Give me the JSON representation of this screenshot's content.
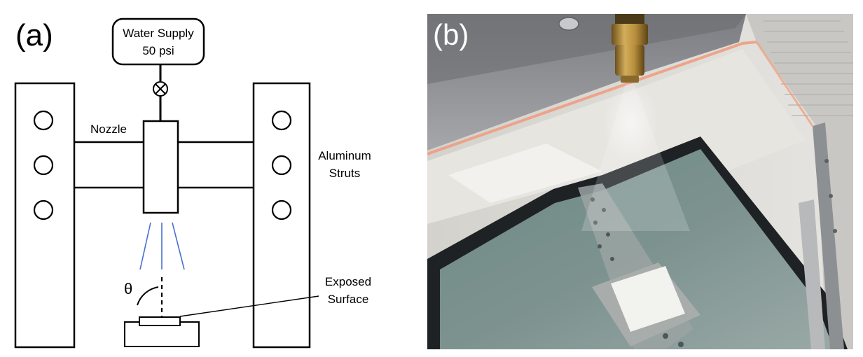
{
  "panel_a": {
    "tag": "(a)",
    "water_supply": {
      "line1": "Water Supply",
      "line2": "50 psi"
    },
    "nozzle_label": "Nozzle",
    "struts_label": {
      "line1": "Aluminum",
      "line2": "Struts"
    },
    "theta_symbol": "θ",
    "surface_label": {
      "line1": "Exposed",
      "line2": "Surface"
    },
    "spray_color": "#4a6fd0"
  },
  "panel_b": {
    "tag": "(b)",
    "photo_description_colors": {
      "ceiling": "#8e8f94",
      "wall": "#d9d7d3",
      "laser_line": "#e8876a",
      "tank_water": "#6f8784",
      "nozzle_brass": "#b08a3a"
    }
  }
}
